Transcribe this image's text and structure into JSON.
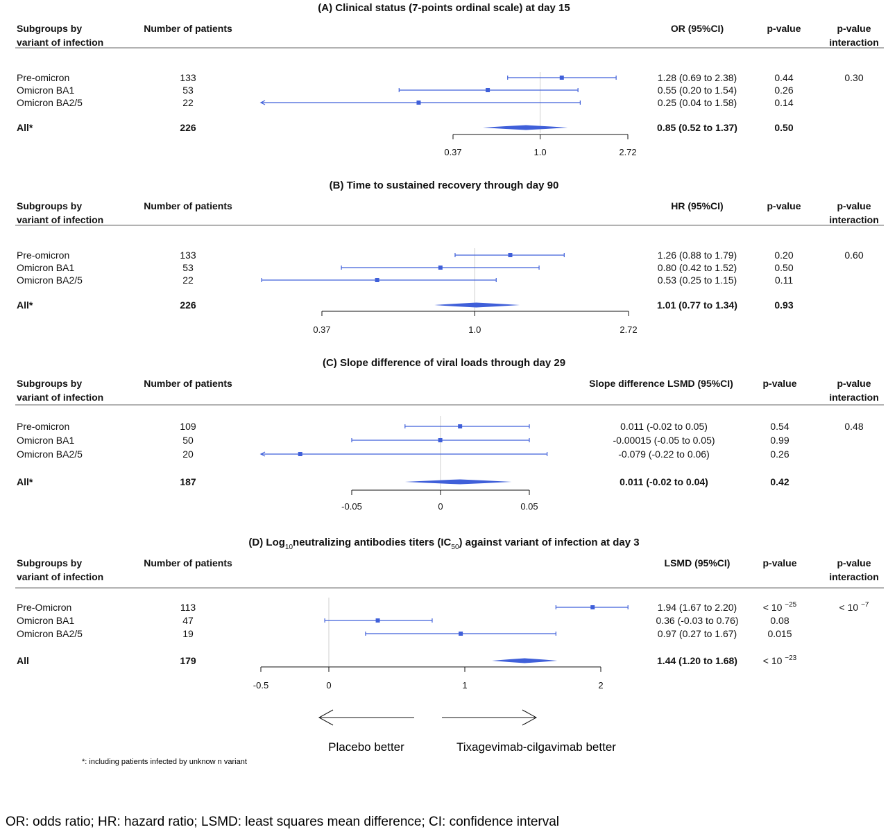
{
  "header_labels": {
    "subgroups_line1": "Subgroups by",
    "subgroups_line2": "variant of infection",
    "patients": "Number of patients",
    "pvalue": "p-value",
    "interaction_line1": "p-value",
    "interaction_line2": "interaction"
  },
  "colors": {
    "marker": "#3f5fd9",
    "rule": "#666666",
    "ref_line": "#cfcfcf",
    "text": "#111111"
  },
  "chart_data": [
    {
      "type": "forest",
      "title": "(A) Clinical status (7-points ordinal scale) at day 15",
      "effect_header": "OR (95%CI)",
      "scale": "log",
      "ref_value": 1.0,
      "xlim": [
        0.37,
        2.72
      ],
      "ticks": [
        "0.37",
        "1.0",
        "2.72"
      ],
      "rows": [
        {
          "label": "Pre-omicron",
          "n": "133",
          "est": 1.28,
          "lo": 0.69,
          "hi": 2.38,
          "ci_text": "1.28 (0.69 to 2.38)",
          "p": "0.44",
          "p_interaction": "0.30"
        },
        {
          "label": "Omicron BA1",
          "n": "53",
          "est": 0.55,
          "lo": 0.2,
          "hi": 1.54,
          "ci_text": "0.55 (0.20 to 1.54)",
          "p": "0.26"
        },
        {
          "label": "Omicron BA2/5",
          "n": "22",
          "est": 0.25,
          "lo": 0.04,
          "hi": 1.58,
          "ci_text": "0.25 (0.04 to 1.58)",
          "p": "0.14"
        }
      ],
      "overall": {
        "label": "All*",
        "n": "226",
        "est": 0.85,
        "lo": 0.52,
        "hi": 1.37,
        "ci_text": "0.85 (0.52 to 1.37)",
        "p": "0.50"
      }
    },
    {
      "type": "forest",
      "title": "(B) Time to sustained recovery through day 90",
      "effect_header": "HR (95%CI)",
      "scale": "log",
      "ref_value": 1.0,
      "xlim": [
        0.37,
        2.72
      ],
      "ticks": [
        "0.37",
        "1.0",
        "2.72"
      ],
      "rows": [
        {
          "label": "Pre-omicron",
          "n": "133",
          "est": 1.26,
          "lo": 0.88,
          "hi": 1.79,
          "ci_text": "1.26 (0.88 to 1.79)",
          "p": "0.20",
          "p_interaction": "0.60"
        },
        {
          "label": "Omicron BA1",
          "n": "53",
          "est": 0.8,
          "lo": 0.42,
          "hi": 1.52,
          "ci_text": "0.80 (0.42 to 1.52)",
          "p": "0.50"
        },
        {
          "label": "Omicron BA2/5",
          "n": "22",
          "est": 0.53,
          "lo": 0.25,
          "hi": 1.15,
          "ci_text": "0.53 (0.25 to 1.15)",
          "p": "0.11"
        }
      ],
      "overall": {
        "label": "All*",
        "n": "226",
        "est": 1.01,
        "lo": 0.77,
        "hi": 1.34,
        "ci_text": "1.01 (0.77 to 1.34)",
        "p": "0.93"
      }
    },
    {
      "type": "forest",
      "title": "(C) Slope difference of viral loads through day 29",
      "effect_header": "Slope difference LSMD (95%CI)",
      "scale": "linear",
      "ref_value": 0,
      "xlim": [
        -0.05,
        0.05
      ],
      "ticks": [
        "-0.05",
        "0",
        "0.05"
      ],
      "rows": [
        {
          "label": "Pre-omicron",
          "n": "109",
          "est": 0.011,
          "lo": -0.02,
          "hi": 0.05,
          "ci_text": "0.011 (-0.02 to 0.05)",
          "p": "0.54",
          "p_interaction": "0.48"
        },
        {
          "label": "Omicron BA1",
          "n": "50",
          "est": -0.00015,
          "lo": -0.05,
          "hi": 0.05,
          "ci_text": "-0.00015 (-0.05 to 0.05)",
          "p": "0.99"
        },
        {
          "label": "Omicron BA2/5",
          "n": "20",
          "est": -0.079,
          "lo": -0.22,
          "hi": 0.06,
          "ci_text": "-0.079 (-0.22 to 0.06)",
          "p": "0.26"
        }
      ],
      "overall": {
        "label": "All*",
        "n": "187",
        "est": 0.011,
        "lo": -0.02,
        "hi": 0.04,
        "ci_text": "0.011 (-0.02 to 0.04)",
        "p": "0.42"
      }
    },
    {
      "type": "forest",
      "title_parts": {
        "pre": "(D) Log",
        "sub1": "10",
        "mid": "neutralizing antibodies titers (IC",
        "sub2": "50",
        "post": ") against variant of infection at day 3"
      },
      "effect_header": "LSMD (95%CI)",
      "scale": "linear",
      "ref_value": 0,
      "xlim": [
        -0.5,
        2
      ],
      "ticks": [
        "-0.5",
        "0",
        "1",
        "2"
      ],
      "rows": [
        {
          "label": "Pre-Omicron",
          "n": "113",
          "est": 1.94,
          "lo": 1.67,
          "hi": 2.2,
          "ci_text": "1.94 (1.67 to 2.20)",
          "p_base": "< 10",
          "p_exp": "−25",
          "p_interaction_base": "< 10",
          "p_interaction_exp": "−7"
        },
        {
          "label": "Omicron BA1",
          "n": "47",
          "est": 0.36,
          "lo": -0.03,
          "hi": 0.76,
          "ci_text": "0.36 (-0.03 to 0.76)",
          "p": "0.08"
        },
        {
          "label": "Omicron BA2/5",
          "n": "19",
          "est": 0.97,
          "lo": 0.27,
          "hi": 1.67,
          "ci_text": "0.97 (0.27 to 1.67)",
          "p": "0.015"
        }
      ],
      "overall": {
        "label": "All",
        "n": "179",
        "est": 1.44,
        "lo": 1.2,
        "hi": 1.68,
        "ci_text": "1.44 (1.20 to 1.68)",
        "p_base": "< 10",
        "p_exp": "−23"
      }
    }
  ],
  "direction": {
    "left_label": "Placebo better",
    "right_label": "Tixagevimab-cilgavimab better"
  },
  "footnote": "*: including patients infected by unknow n variant",
  "abbreviations": "OR: odds ratio; HR: hazard ratio; LSMD: least squares mean difference; CI: confidence interval"
}
